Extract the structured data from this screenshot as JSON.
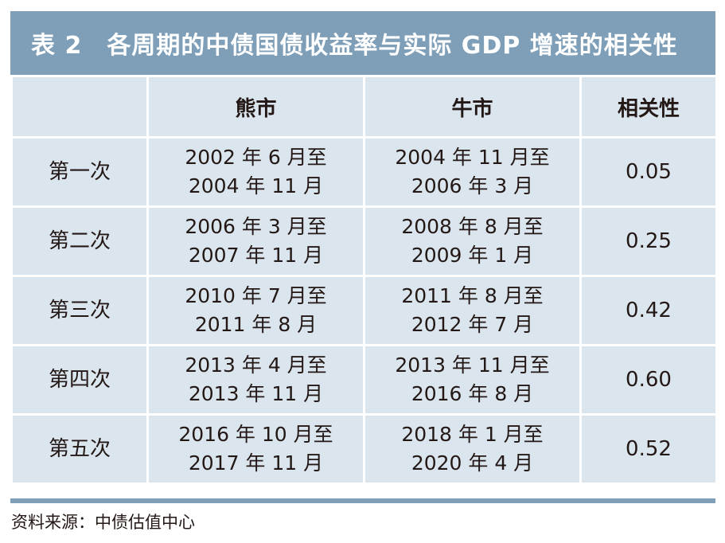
{
  "title": "表 2　各周期的中债国债收益率与实际 GDP 增速的相关性",
  "headers": [
    "",
    "熊市",
    "牛市",
    "相关性"
  ],
  "rows": [
    {
      "label": "第一次",
      "bear": [
        "2002 年 6 月至",
        "2004 年 11 月"
      ],
      "bull": [
        "2004 年 11 月至",
        "2006 年 3 月"
      ],
      "corr": "0.05"
    },
    {
      "label": "第二次",
      "bear": [
        "2006 年 3 月至",
        "2007 年 11 月"
      ],
      "bull": [
        "2008 年 8 月至",
        "2009 年 1 月"
      ],
      "corr": "0.25"
    },
    {
      "label": "第三次",
      "bear": [
        "2010 年 7 月至",
        "2011 年 8 月"
      ],
      "bull": [
        "2011 年 8 月至",
        "2012 年 7 月"
      ],
      "corr": "0.42"
    },
    {
      "label": "第四次",
      "bear": [
        "2013 年 4 月至",
        "2013 年 11 月"
      ],
      "bull": [
        "2013 年 11 月至",
        "2016 年 8 月"
      ],
      "corr": "0.60"
    },
    {
      "label": "第五次",
      "bear": [
        "2016 年 10 月至",
        "2017 年 11 月"
      ],
      "bull": [
        "2018 年 1 月至",
        "2020 年 4 月"
      ],
      "corr": "0.52"
    }
  ],
  "source": "资料来源：中债估值中心",
  "colors": {
    "header_bar": "#7f9fb8",
    "cell_bg": "#dbe5ee",
    "text": "#231815"
  }
}
